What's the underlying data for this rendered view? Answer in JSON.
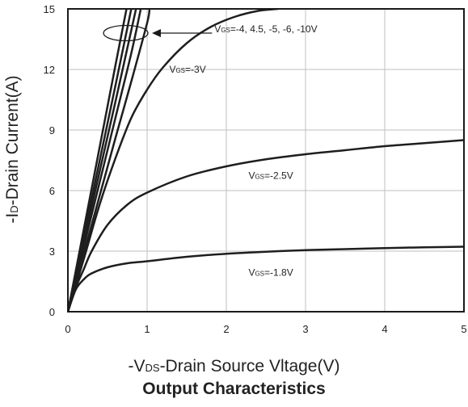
{
  "chart_data": {
    "type": "line",
    "title": "Output Characteristics",
    "xlabel": {
      "prefix": "-V",
      "sub": "DS",
      "suffix": "-Drain Source Vltage(V)"
    },
    "ylabel": {
      "prefix": "-I",
      "sub": "D",
      "suffix": "-Drain Current(A)"
    },
    "xlim": [
      0,
      5
    ],
    "ylim": [
      0,
      15
    ],
    "xticks": [
      "0",
      "1",
      "2",
      "3",
      "4",
      "5"
    ],
    "yticks": [
      "0",
      "3",
      "6",
      "9",
      "12",
      "15"
    ],
    "grid": true,
    "series": [
      {
        "name": "VGS=-1.8V",
        "x": [
          0,
          0.1,
          0.2,
          0.3,
          0.5,
          0.75,
          1,
          1.5,
          2,
          2.5,
          3,
          3.5,
          4,
          4.5,
          5
        ],
        "y": [
          0,
          1.1,
          1.6,
          1.9,
          2.2,
          2.4,
          2.5,
          2.72,
          2.87,
          2.97,
          3.05,
          3.1,
          3.15,
          3.19,
          3.22
        ]
      },
      {
        "name": "VGS=-2.5V",
        "x": [
          0,
          0.1,
          0.2,
          0.3,
          0.5,
          0.75,
          1,
          1.5,
          2,
          2.5,
          3,
          3.5,
          4,
          4.5,
          5
        ],
        "y": [
          0,
          1.2,
          2.1,
          3.0,
          4.3,
          5.3,
          5.9,
          6.7,
          7.2,
          7.55,
          7.8,
          8.0,
          8.2,
          8.35,
          8.5
        ]
      },
      {
        "name": "VGS=-3V",
        "x": [
          0,
          0.2,
          0.4,
          0.6,
          0.8,
          1,
          1.2,
          1.5,
          1.8,
          2.1,
          2.4,
          2.65
        ],
        "y": [
          0,
          2.6,
          5.3,
          7.6,
          9.6,
          11.0,
          12.1,
          13.3,
          14.1,
          14.6,
          14.9,
          15
        ]
      },
      {
        "name": "VGS=-4V",
        "x": [
          0,
          0.3,
          0.6,
          0.8,
          1.0,
          1.03
        ],
        "y": [
          0,
          4.3,
          8.6,
          11.4,
          14.3,
          15
        ]
      },
      {
        "name": "VGS=-4.5V",
        "x": [
          0,
          0.3,
          0.6,
          0.8,
          0.92
        ],
        "y": [
          0,
          4.8,
          9.6,
          12.8,
          15
        ]
      },
      {
        "name": "VGS=-5V",
        "x": [
          0,
          0.3,
          0.6,
          0.86
        ],
        "y": [
          0,
          5.2,
          10.4,
          15
        ]
      },
      {
        "name": "VGS=-6V",
        "x": [
          0,
          0.3,
          0.6,
          0.8
        ],
        "y": [
          0,
          5.6,
          11.2,
          15
        ]
      },
      {
        "name": "VGS=-10V",
        "x": [
          0,
          0.3,
          0.6,
          0.74
        ],
        "y": [
          0,
          6.1,
          12.2,
          15
        ]
      }
    ],
    "annotations": [
      {
        "id": "vgs-group",
        "prefix": "V",
        "sub": "GS",
        "suffix": "=-4, 4.5, -5, -6, -10V",
        "x": 1.85,
        "y": 14.0
      },
      {
        "id": "vgs-3",
        "prefix": "V",
        "sub": "GS",
        "suffix": "=-3V",
        "x": 1.28,
        "y": 12.0
      },
      {
        "id": "vgs-2-5",
        "prefix": "V",
        "sub": "GS",
        "suffix": "=-2.5V",
        "x": 2.28,
        "y": 6.75
      },
      {
        "id": "vgs-1-8",
        "prefix": "V",
        "sub": "GS",
        "suffix": "=-1.8V",
        "x": 2.28,
        "y": 1.95
      }
    ],
    "ellipse": {
      "cx": 0.73,
      "cy": 13.8,
      "rx": 0.28,
      "ry": 0.38
    }
  }
}
